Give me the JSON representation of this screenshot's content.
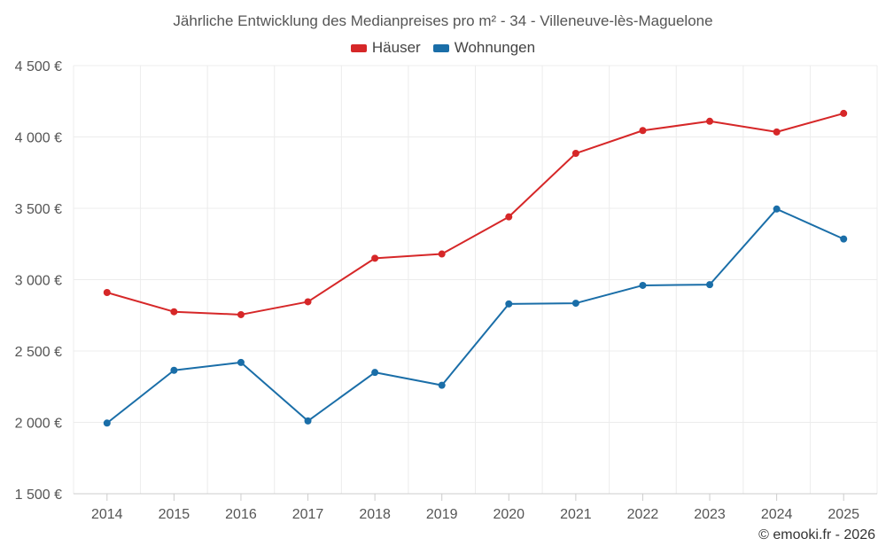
{
  "chart_data": {
    "type": "line",
    "title": "Jährliche Entwicklung des Medianpreises pro m² - 34 - Villeneuve-lès-Maguelone",
    "xlabel": "",
    "ylabel": "",
    "categories": [
      "2014",
      "2015",
      "2016",
      "2017",
      "2018",
      "2019",
      "2020",
      "2021",
      "2022",
      "2023",
      "2024",
      "2025"
    ],
    "ylim": [
      1500,
      4500
    ],
    "yticks": [
      1500,
      2000,
      2500,
      3000,
      3500,
      4000,
      4500
    ],
    "ytick_labels": [
      "1 500 €",
      "2 000 €",
      "2 500 €",
      "3 000 €",
      "3 500 €",
      "4 000 €",
      "4 500 €"
    ],
    "grid": true,
    "legend_position": "top-center",
    "series": [
      {
        "name": "Häuser",
        "color": "#d62728",
        "values": [
          2910,
          2775,
          2755,
          2845,
          3150,
          3180,
          3440,
          3885,
          4045,
          4110,
          4035,
          4165
        ]
      },
      {
        "name": "Wohnungen",
        "color": "#1a6ea8",
        "values": [
          1995,
          2365,
          2420,
          2010,
          2350,
          2260,
          2830,
          2835,
          2960,
          2965,
          3495,
          3285
        ]
      }
    ]
  },
  "copyright": "© emooki.fr - 2026"
}
